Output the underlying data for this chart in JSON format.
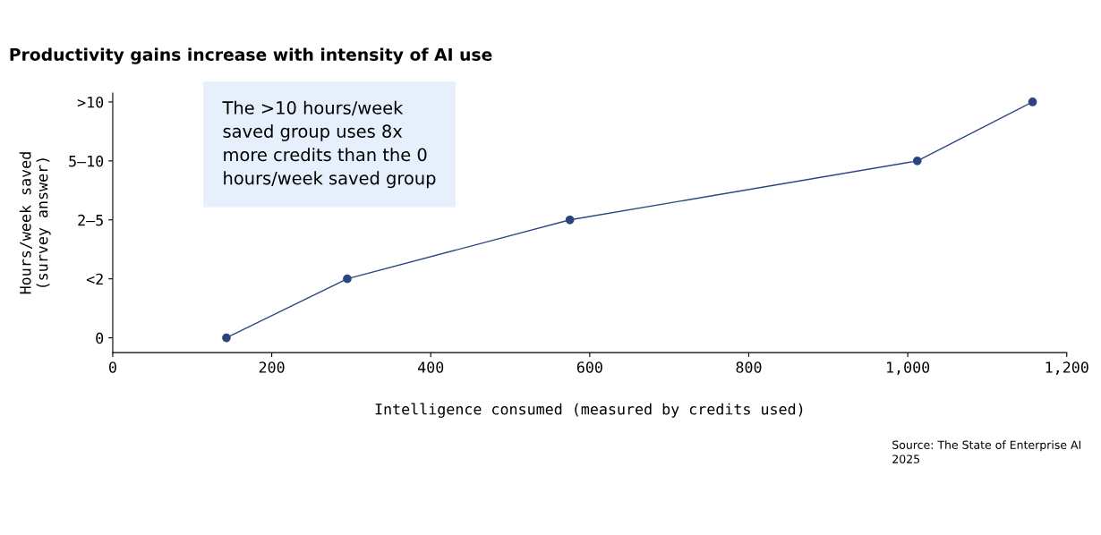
{
  "chart_data": {
    "type": "line",
    "title": "Productivity gains increase with intensity of AI use",
    "xlabel": "Intelligence consumed (measured by credits used)",
    "ylabel": "Hours/week saved\n(survey answer)",
    "orientation": "horizontal",
    "categories": [
      ">10",
      "5–10",
      "2–5",
      "<2",
      "0"
    ],
    "series": [
      {
        "color": "#2c4580",
        "values": [
          1157,
          1012,
          575,
          295,
          143
        ]
      }
    ],
    "marker": "circle",
    "line_style": "solid",
    "xlim": [
      0,
      1200
    ],
    "xticks": [
      0,
      200,
      400,
      600,
      800,
      {
        "value": 1000,
        "label": "1,000"
      },
      {
        "value": 1200,
        "label": "1,200"
      }
    ],
    "annotations": [
      "The >10 hours/week\nsaved group uses 8x\nmore credits than the 0\nhours/week saved group",
      "Source: The State of Enterprise AI\n2025"
    ]
  }
}
